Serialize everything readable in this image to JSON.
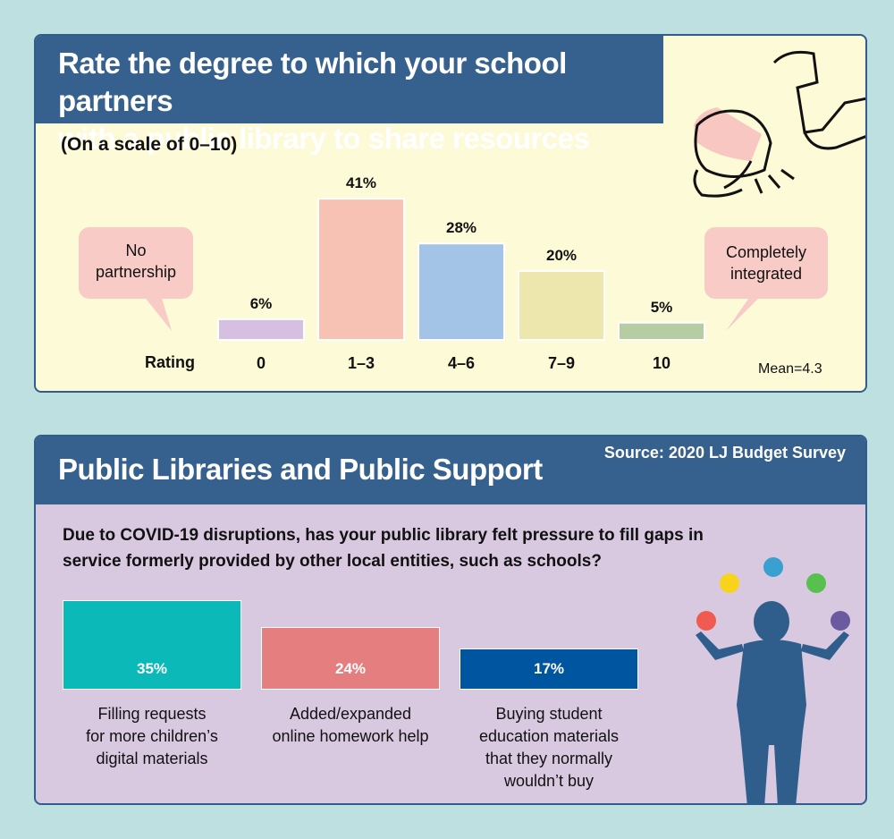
{
  "panel1": {
    "title_line1": "Rate the degree to which your school partners",
    "title_line2": "with a public library to share resources",
    "scale": "(On a scale of 0–10)",
    "bubble_left_line1": "No",
    "bubble_left_line2": "partnership",
    "bubble_right_line1": "Completely",
    "bubble_right_line2": "integrated",
    "rating_label": "Rating",
    "mean": "Mean=4.3"
  },
  "panel2": {
    "title": "Public Libraries and Public Support",
    "source": "Source: 2020 LJ Budget Survey",
    "question": "Due to COVID-19 disruptions, has your public library felt pressure to fill gaps in service formerly provided by other local entities, such as schools?"
  },
  "chart_data": [
    {
      "type": "bar",
      "title": "Rate the degree to which your school partners with a public library to share resources",
      "subtitle": "(On a scale of 0–10)",
      "xlabel": "Rating",
      "categories": [
        "0",
        "1–3",
        "4–6",
        "7–9",
        "10"
      ],
      "values": [
        6,
        41,
        28,
        20,
        5
      ],
      "labels": [
        "6%",
        "41%",
        "28%",
        "20%",
        "5%"
      ],
      "colors": [
        "#d6bfe0",
        "#f7c2b4",
        "#a3c4e7",
        "#ede6ad",
        "#b6cca3"
      ],
      "annotation": "Mean=4.3"
    },
    {
      "type": "bar",
      "title": "Public Libraries and Public Support",
      "categories": [
        [
          "Filling requests",
          "for more children’s",
          "digital materials"
        ],
        [
          "Added/expanded",
          "online homework help"
        ],
        [
          "Buying student",
          "education materials",
          "that they normally",
          "wouldn’t buy"
        ]
      ],
      "values": [
        35,
        24,
        17
      ],
      "labels": [
        "35%",
        "24%",
        "17%"
      ],
      "colors": [
        "#0bbab8",
        "#e57f7f",
        "#0055a0"
      ]
    }
  ]
}
